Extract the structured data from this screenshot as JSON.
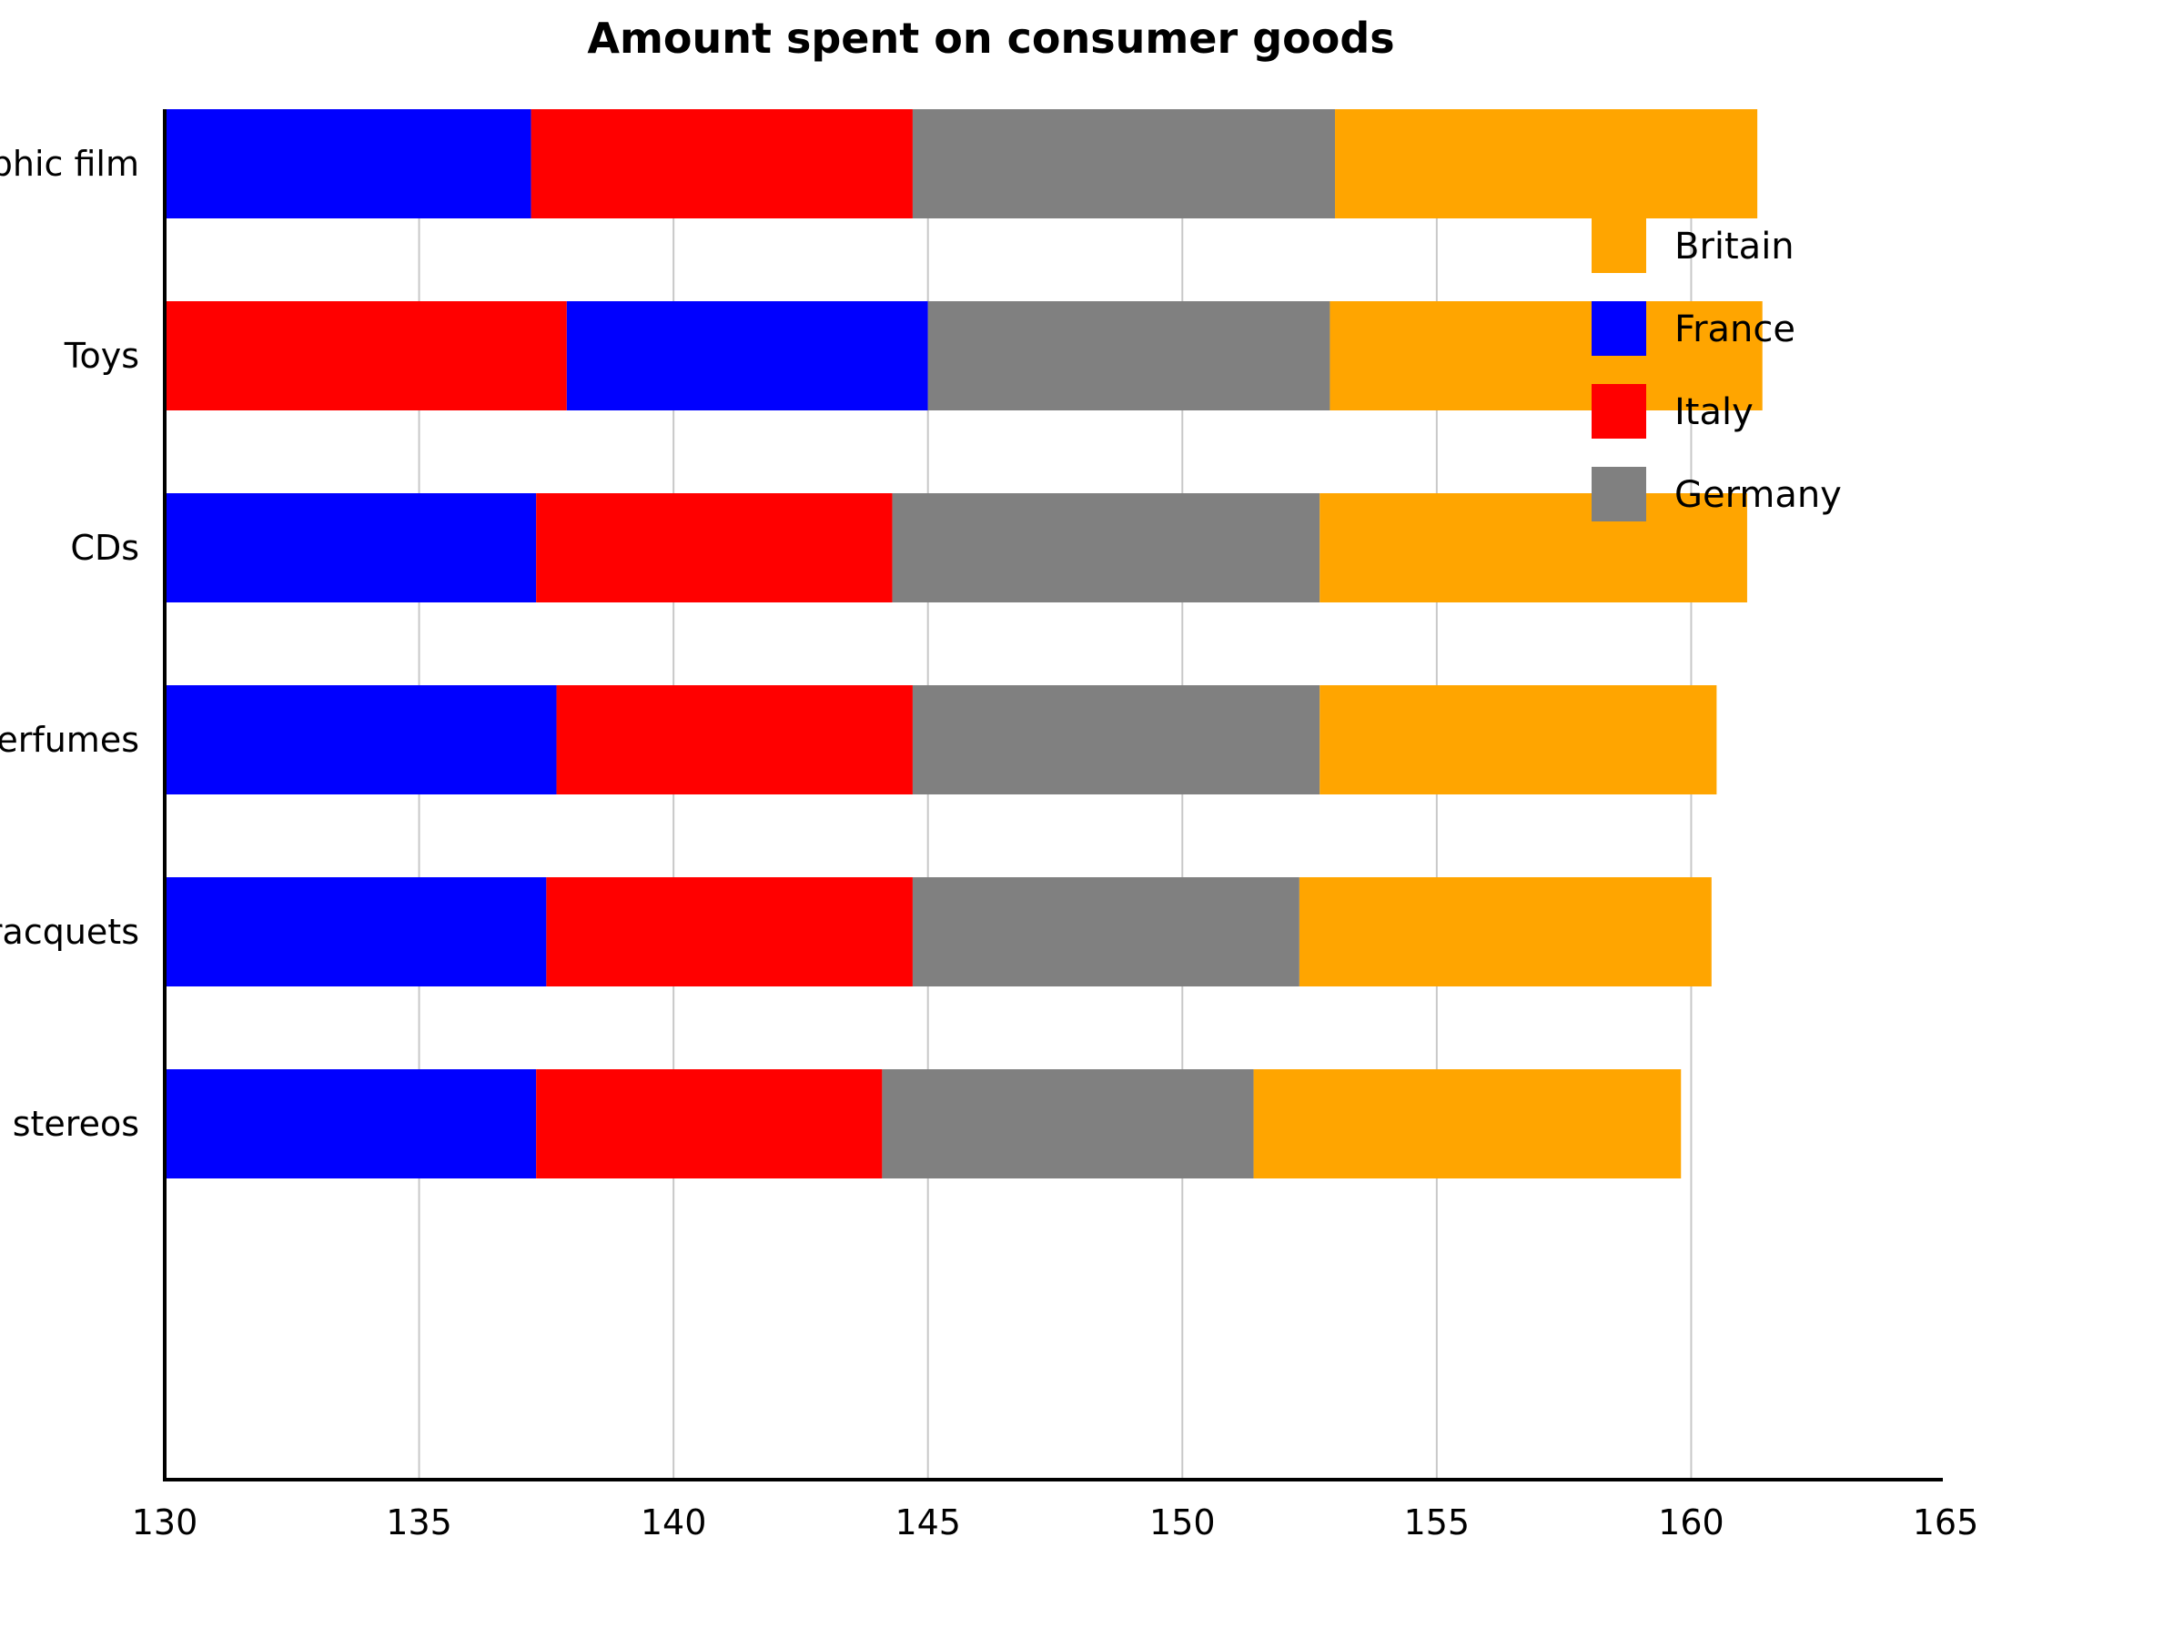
{
  "chart_data": {
    "type": "bar",
    "orientation": "horizontal",
    "stacked": true,
    "title": "Amount spent on consumer goods",
    "xlabel": "",
    "ylabel": "",
    "xlim": [
      130,
      165
    ],
    "x_ticks": [
      "130",
      "135",
      "140",
      "145",
      "150",
      "155",
      "160",
      "165"
    ],
    "grid": true,
    "legend_position": "top-right",
    "categories": [
      "Photographic film",
      "Toys",
      "CDs",
      "Perfumes",
      "Tennis racquets",
      "Personal stereos"
    ],
    "series": [
      {
        "name": "France",
        "color": "#0000FF",
        "segments": [
          [
            130,
            137.2
          ],
          [
            137.9,
            145
          ],
          [
            130,
            137.3
          ],
          [
            130,
            137.7
          ],
          [
            130,
            137.5
          ],
          [
            130,
            137.3
          ]
        ]
      },
      {
        "name": "Italy",
        "color": "#FF0000",
        "segments": [
          [
            137.2,
            144.7
          ],
          [
            130,
            137.9
          ],
          [
            137.3,
            144.3
          ],
          [
            137.7,
            144.7
          ],
          [
            137.5,
            144.7
          ],
          [
            137.3,
            144.1
          ]
        ]
      },
      {
        "name": "Germany",
        "color": "#808080",
        "segments": [
          [
            144.7,
            153
          ],
          [
            145,
            152.9
          ],
          [
            144.3,
            152.7
          ],
          [
            144.7,
            152.7
          ],
          [
            144.7,
            152.3
          ],
          [
            144.1,
            151.4
          ]
        ]
      },
      {
        "name": "Britain",
        "color": "#FFA500",
        "segments": [
          [
            153,
            161.3
          ],
          [
            152.9,
            161.4
          ],
          [
            152.7,
            161.1
          ],
          [
            152.7,
            160.5
          ],
          [
            152.3,
            160.4
          ],
          [
            151.4,
            159.8
          ]
        ]
      }
    ],
    "legend_order": [
      "Britain",
      "France",
      "Italy",
      "Germany"
    ]
  }
}
